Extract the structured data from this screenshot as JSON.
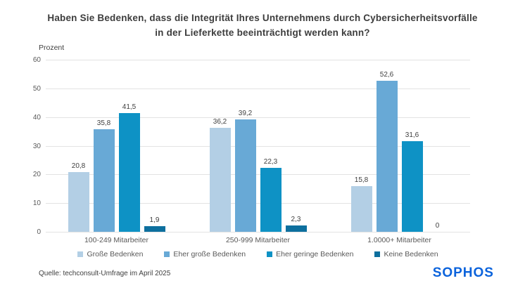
{
  "header": {
    "title_line1": "Haben Sie Bedenken, dass die Integrität Ihres Unternehmens durch Cybersicherheitsvorfälle",
    "title_line2": "in der Lieferkette beeinträchtigt werden kann?"
  },
  "chart_data": {
    "type": "bar",
    "title": "Haben Sie Bedenken, dass die Integrität Ihres Unternehmens durch Cybersicherheitsvorfälle in der Lieferkette beeinträchtigt werden kann?",
    "xlabel": "",
    "ylabel": "Prozent",
    "ylim": [
      0,
      60
    ],
    "y_ticks": [
      0,
      10,
      20,
      30,
      40,
      50,
      60
    ],
    "grid": true,
    "legend_position": "bottom",
    "decimal_separator": ",",
    "categories": [
      "100-249 Mitarbeiter",
      "250-999 Mitarbeiter",
      "1.0000+ Mitarbeiter"
    ],
    "series": [
      {
        "name": "Große Bedenken",
        "color": "#b3cfe5",
        "values": [
          20.8,
          36.2,
          15.8
        ]
      },
      {
        "name": "Eher große Bedenken",
        "color": "#68a9d6",
        "values": [
          35.8,
          39.2,
          52.6
        ]
      },
      {
        "name": "Eher geringe Bedenken",
        "color": "#0e92c5",
        "values": [
          41.5,
          22.3,
          31.6
        ]
      },
      {
        "name": "Keine Bedenken",
        "color": "#0d6f9e",
        "values": [
          1.9,
          2.3,
          0
        ]
      }
    ]
  },
  "footer": {
    "source": "Quelle: techconsult-Umfrage im April 2025",
    "brand": "SOPHOS",
    "brand_color": "#0b63dc"
  }
}
